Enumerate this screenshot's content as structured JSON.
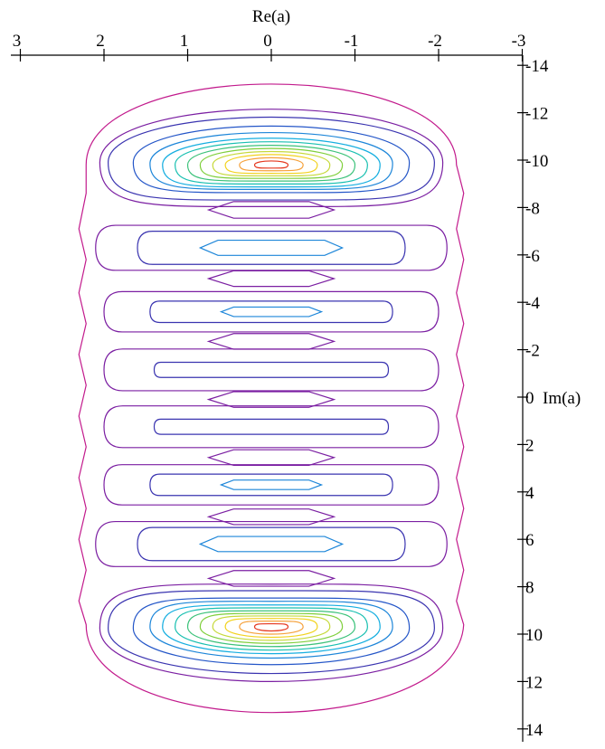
{
  "chart_data": {
    "type": "contour",
    "title": "",
    "xlabel": "Re(a)",
    "ylabel": "Im(a)",
    "x_axis": {
      "position": "top",
      "reversed": true,
      "range": [
        3,
        -3
      ],
      "ticks": [
        {
          "value": 3,
          "label": "3"
        },
        {
          "value": 2,
          "label": "2"
        },
        {
          "value": 1,
          "label": "1"
        },
        {
          "value": 0,
          "label": "0"
        },
        {
          "value": -1,
          "label": "-1"
        },
        {
          "value": -2,
          "label": "-2"
        },
        {
          "value": -3,
          "label": "-3"
        }
      ]
    },
    "y_axis": {
      "position": "right",
      "range": [
        -15,
        15
      ],
      "ticks": [
        {
          "value": -14,
          "label": "-14"
        },
        {
          "value": -12,
          "label": "-12"
        },
        {
          "value": -10,
          "label": "-10"
        },
        {
          "value": -8,
          "label": "-8"
        },
        {
          "value": -6,
          "label": "-6"
        },
        {
          "value": -4,
          "label": "-4"
        },
        {
          "value": -2,
          "label": "-2"
        },
        {
          "value": 0,
          "label": "0"
        },
        {
          "value": 2,
          "label": "2"
        },
        {
          "value": 4,
          "label": "4"
        },
        {
          "value": 6,
          "label": "6"
        },
        {
          "value": 8,
          "label": "8"
        },
        {
          "value": 10,
          "label": "10"
        },
        {
          "value": 12,
          "label": "12"
        },
        {
          "value": 14,
          "label": "14"
        }
      ]
    },
    "grid": false,
    "contours": [
      {
        "name": "outer-envelope",
        "level": 0,
        "shape": "envelope",
        "cx": 0,
        "cy": 0,
        "rx": 2.3,
        "ry": 14.0,
        "wavy": true
      },
      {
        "name": "top-peak-1",
        "level": 1,
        "cx": 0,
        "cy": -9.9,
        "rx": 2.05,
        "ry": 3.0,
        "shape": "lobe"
      },
      {
        "name": "top-peak-2",
        "level": 2,
        "cx": 0,
        "cy": -9.9,
        "rx": 1.95,
        "ry": 2.55,
        "shape": "lobe"
      },
      {
        "name": "top-peak-3",
        "level": 3,
        "cx": 0,
        "cy": -9.9,
        "rx": 1.65,
        "ry": 2.05,
        "shape": "lobe"
      },
      {
        "name": "top-peak-4",
        "level": 4,
        "cx": 0,
        "cy": -9.85,
        "rx": 1.45,
        "ry": 1.75,
        "shape": "lobe"
      },
      {
        "name": "top-peak-5",
        "level": 5,
        "cx": 0,
        "cy": -9.8,
        "rx": 1.3,
        "ry": 1.5,
        "shape": "lobe"
      },
      {
        "name": "top-peak-6",
        "level": 6,
        "cx": 0,
        "cy": -9.8,
        "rx": 1.15,
        "ry": 1.3,
        "shape": "lobe"
      },
      {
        "name": "top-peak-7",
        "level": 7,
        "cx": 0,
        "cy": -9.8,
        "rx": 1.0,
        "ry": 1.1,
        "shape": "lobe"
      },
      {
        "name": "top-peak-8",
        "level": 8,
        "cx": 0,
        "cy": -9.8,
        "rx": 0.85,
        "ry": 0.92,
        "shape": "lobe"
      },
      {
        "name": "top-peak-9",
        "level": 9,
        "cx": 0,
        "cy": -9.8,
        "rx": 0.7,
        "ry": 0.75,
        "shape": "lobe"
      },
      {
        "name": "top-peak-10",
        "level": 10,
        "cx": 0,
        "cy": -9.8,
        "rx": 0.55,
        "ry": 0.58,
        "shape": "lobe"
      },
      {
        "name": "top-peak-11",
        "level": 11,
        "cx": 0,
        "cy": -9.8,
        "rx": 0.38,
        "ry": 0.4,
        "shape": "lobe"
      },
      {
        "name": "top-peak-12",
        "level": 12,
        "cx": 0,
        "cy": -9.8,
        "rx": 0.2,
        "ry": 0.22,
        "shape": "lobe"
      },
      {
        "name": "valley-m8",
        "level": 1,
        "cx": 0,
        "cy": -7.9,
        "rx": 0.75,
        "ry": 0.35,
        "shape": "lens"
      },
      {
        "name": "lobe-m6-a",
        "level": 1,
        "cx": 0,
        "cy": -6.3,
        "rx": 2.1,
        "ry": 0.95,
        "shape": "pill"
      },
      {
        "name": "lobe-m6-b",
        "level": 2,
        "cx": 0,
        "cy": -6.3,
        "rx": 1.6,
        "ry": 0.7,
        "shape": "pill"
      },
      {
        "name": "lobe-m6-c",
        "level": 4,
        "cx": 0,
        "cy": -6.3,
        "rx": 0.85,
        "ry": 0.32,
        "shape": "hexagon"
      },
      {
        "name": "valley-m5",
        "level": 1,
        "cx": 0,
        "cy": -5.0,
        "rx": 0.75,
        "ry": 0.33,
        "shape": "lens"
      },
      {
        "name": "lobe-m4-a",
        "level": 1,
        "cx": 0,
        "cy": -3.6,
        "rx": 2.0,
        "ry": 0.85,
        "shape": "pill"
      },
      {
        "name": "lobe-m4-b",
        "level": 2,
        "cx": 0,
        "cy": -3.6,
        "rx": 1.45,
        "ry": 0.45,
        "shape": "pill"
      },
      {
        "name": "lobe-m4-c",
        "level": 4,
        "cx": 0,
        "cy": -3.6,
        "rx": 0.6,
        "ry": 0.2,
        "shape": "hexagon"
      },
      {
        "name": "valley-m2",
        "level": 1,
        "cx": 0,
        "cy": -2.35,
        "rx": 0.75,
        "ry": 0.33,
        "shape": "lens"
      },
      {
        "name": "lobe-m1-a",
        "level": 1,
        "cx": 0,
        "cy": -1.15,
        "rx": 2.0,
        "ry": 0.88,
        "shape": "pill"
      },
      {
        "name": "lobe-m1-b",
        "level": 2,
        "cx": 0,
        "cy": -1.15,
        "rx": 1.4,
        "ry": 0.32,
        "shape": "pill"
      },
      {
        "name": "valley-0",
        "level": 1,
        "cx": 0,
        "cy": 0.1,
        "rx": 0.75,
        "ry": 0.33,
        "shape": "lens"
      },
      {
        "name": "lobe-p1-a",
        "level": 1,
        "cx": 0,
        "cy": 1.25,
        "rx": 2.0,
        "ry": 0.88,
        "shape": "pill"
      },
      {
        "name": "lobe-p1-b",
        "level": 2,
        "cx": 0,
        "cy": 1.25,
        "rx": 1.4,
        "ry": 0.32,
        "shape": "pill"
      },
      {
        "name": "valley-p2",
        "level": 1,
        "cx": 0,
        "cy": 2.55,
        "rx": 0.75,
        "ry": 0.33,
        "shape": "lens"
      },
      {
        "name": "lobe-p4-a",
        "level": 1,
        "cx": 0,
        "cy": 3.7,
        "rx": 2.0,
        "ry": 0.85,
        "shape": "pill"
      },
      {
        "name": "lobe-p4-b",
        "level": 2,
        "cx": 0,
        "cy": 3.7,
        "rx": 1.45,
        "ry": 0.45,
        "shape": "pill"
      },
      {
        "name": "lobe-p4-c",
        "level": 4,
        "cx": 0,
        "cy": 3.7,
        "rx": 0.6,
        "ry": 0.2,
        "shape": "hexagon"
      },
      {
        "name": "valley-p5",
        "level": 1,
        "cx": 0,
        "cy": 5.05,
        "rx": 0.75,
        "ry": 0.33,
        "shape": "lens"
      },
      {
        "name": "lobe-p6-a",
        "level": 1,
        "cx": 0,
        "cy": 6.2,
        "rx": 2.1,
        "ry": 0.95,
        "shape": "pill"
      },
      {
        "name": "lobe-p6-b",
        "level": 2,
        "cx": 0,
        "cy": 6.2,
        "rx": 1.6,
        "ry": 0.7,
        "shape": "pill"
      },
      {
        "name": "lobe-p6-c",
        "level": 4,
        "cx": 0,
        "cy": 6.2,
        "rx": 0.85,
        "ry": 0.32,
        "shape": "hexagon"
      },
      {
        "name": "valley-p8",
        "level": 1,
        "cx": 0,
        "cy": 7.65,
        "rx": 0.75,
        "ry": 0.33,
        "shape": "lens"
      },
      {
        "name": "bottom-peak-1",
        "level": 1,
        "cx": 0,
        "cy": 9.75,
        "rx": 2.05,
        "ry": 3.0,
        "shape": "lobe"
      },
      {
        "name": "bottom-peak-2",
        "level": 2,
        "cx": 0,
        "cy": 9.75,
        "rx": 1.95,
        "ry": 2.55,
        "shape": "lobe"
      },
      {
        "name": "bottom-peak-3",
        "level": 3,
        "cx": 0,
        "cy": 9.75,
        "rx": 1.65,
        "ry": 2.05,
        "shape": "lobe"
      },
      {
        "name": "bottom-peak-4",
        "level": 4,
        "cx": 0,
        "cy": 9.7,
        "rx": 1.45,
        "ry": 1.75,
        "shape": "lobe"
      },
      {
        "name": "bottom-peak-5",
        "level": 5,
        "cx": 0,
        "cy": 9.7,
        "rx": 1.3,
        "ry": 1.5,
        "shape": "lobe"
      },
      {
        "name": "bottom-peak-6",
        "level": 6,
        "cx": 0,
        "cy": 9.7,
        "rx": 1.15,
        "ry": 1.3,
        "shape": "lobe"
      },
      {
        "name": "bottom-peak-7",
        "level": 7,
        "cx": 0,
        "cy": 9.7,
        "rx": 1.0,
        "ry": 1.1,
        "shape": "lobe"
      },
      {
        "name": "bottom-peak-8",
        "level": 8,
        "cx": 0,
        "cy": 9.7,
        "rx": 0.85,
        "ry": 0.92,
        "shape": "lobe"
      },
      {
        "name": "bottom-peak-9",
        "level": 9,
        "cx": 0,
        "cy": 9.7,
        "rx": 0.7,
        "ry": 0.75,
        "shape": "lobe"
      },
      {
        "name": "bottom-peak-10",
        "level": 10,
        "cx": 0,
        "cy": 9.7,
        "rx": 0.55,
        "ry": 0.58,
        "shape": "lobe"
      },
      {
        "name": "bottom-peak-11",
        "level": 11,
        "cx": 0,
        "cy": 9.7,
        "rx": 0.38,
        "ry": 0.4,
        "shape": "lobe"
      },
      {
        "name": "bottom-peak-12",
        "level": 12,
        "cx": 0,
        "cy": 9.7,
        "rx": 0.2,
        "ry": 0.22,
        "shape": "lobe"
      }
    ],
    "level_colors": [
      "#c21a8c",
      "#7b1fa2",
      "#3a34b0",
      "#2456c8",
      "#1d86d9",
      "#15aee0",
      "#17bfb0",
      "#3cc27a",
      "#7fcf3c",
      "#c6d93a",
      "#f2d21e",
      "#f5a13a",
      "#e5371e"
    ]
  }
}
